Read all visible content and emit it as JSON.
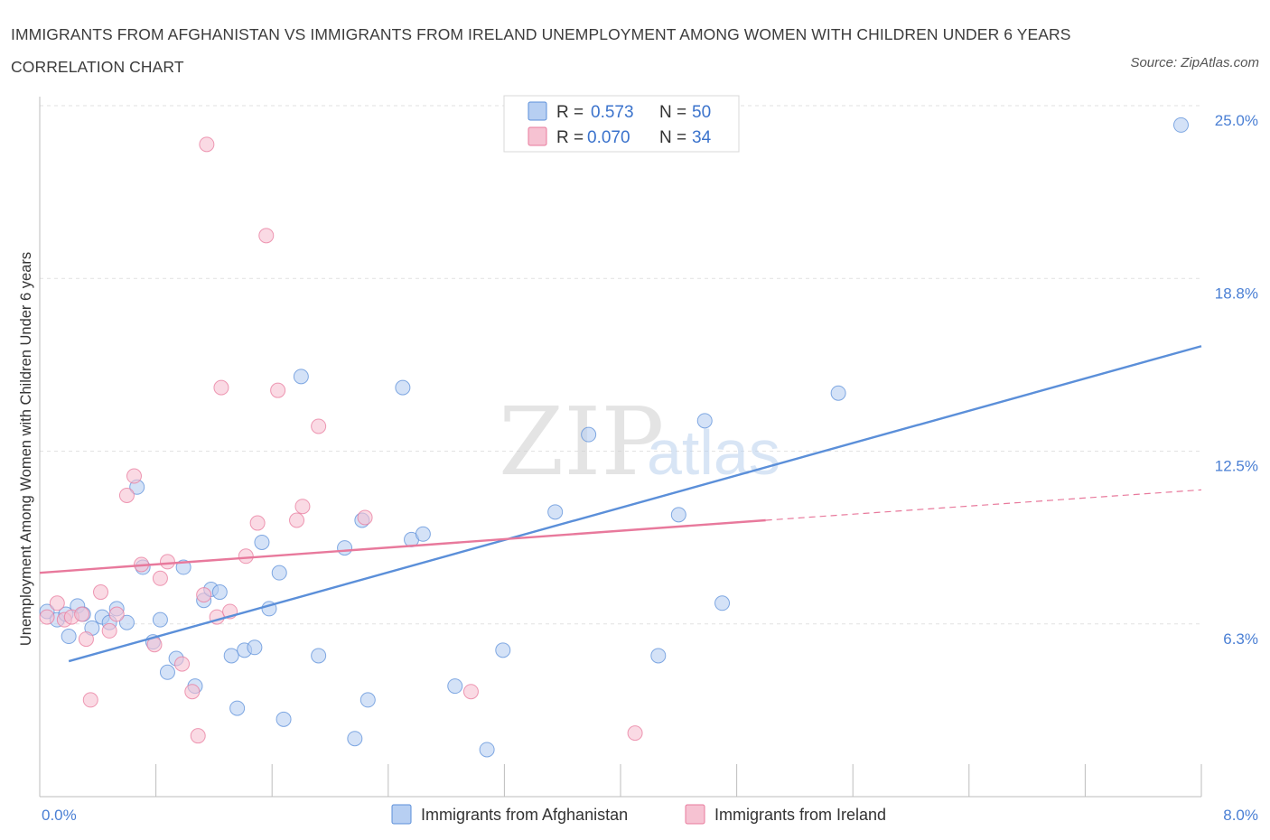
{
  "title": "IMMIGRANTS FROM AFGHANISTAN VS IMMIGRANTS FROM IRELAND UNEMPLOYMENT AMONG WOMEN WITH CHILDREN UNDER 6 YEARS CORRELATION CHART",
  "source": "Source: ZipAtlas.com",
  "watermark": {
    "zip": "ZIP",
    "atlas": "atlas"
  },
  "colors": {
    "afghanistan": "#5b8fd9",
    "ireland": "#e8799c",
    "afghanistan_fill": "#b7cff2",
    "ireland_fill": "#f6c2d2",
    "tick": "#4a7fd4"
  },
  "legend": {
    "rows": [
      {
        "r_label": "R =",
        "r_value": "0.573",
        "n_label": "N =",
        "n_value": "50"
      },
      {
        "r_label": "R =",
        "r_value": "0.070",
        "n_label": "N =",
        "n_value": "34"
      }
    ]
  },
  "bottom_legend": [
    "Immigrants from Afghanistan",
    "Immigrants from Ireland"
  ],
  "chart_data": {
    "type": "scatter",
    "ylabel": "Unemployment Among Women with Children Under 6 years",
    "xlim": [
      0,
      8
    ],
    "ylim": [
      0,
      25
    ],
    "x_tick_labels": [
      {
        "value": 0,
        "label": "0.0%"
      },
      {
        "value": 8,
        "label": "8.0%"
      }
    ],
    "y_tick_labels": [
      {
        "value": 6.25,
        "label": "6.3%"
      },
      {
        "value": 12.5,
        "label": "12.5%"
      },
      {
        "value": 18.75,
        "label": "18.8%"
      },
      {
        "value": 25,
        "label": "25.0%"
      }
    ],
    "grid": true,
    "series": [
      {
        "name": "Immigrants from Afghanistan",
        "points": [
          [
            0.05,
            6.7
          ],
          [
            0.12,
            6.4
          ],
          [
            0.18,
            6.6
          ],
          [
            0.2,
            5.8
          ],
          [
            0.26,
            6.9
          ],
          [
            0.3,
            6.6
          ],
          [
            0.36,
            6.1
          ],
          [
            0.43,
            6.5
          ],
          [
            0.48,
            6.3
          ],
          [
            0.53,
            6.8
          ],
          [
            0.6,
            6.3
          ],
          [
            0.67,
            11.2
          ],
          [
            0.71,
            8.3
          ],
          [
            0.78,
            5.6
          ],
          [
            0.83,
            6.4
          ],
          [
            0.88,
            4.5
          ],
          [
            0.94,
            5.0
          ],
          [
            0.99,
            8.3
          ],
          [
            1.07,
            4.0
          ],
          [
            1.13,
            7.1
          ],
          [
            1.18,
            7.5
          ],
          [
            1.24,
            7.4
          ],
          [
            1.32,
            5.1
          ],
          [
            1.36,
            3.2
          ],
          [
            1.41,
            5.3
          ],
          [
            1.48,
            5.4
          ],
          [
            1.53,
            9.2
          ],
          [
            1.58,
            6.8
          ],
          [
            1.65,
            8.1
          ],
          [
            1.68,
            2.8
          ],
          [
            1.8,
            15.2
          ],
          [
            1.92,
            5.1
          ],
          [
            2.1,
            9.0
          ],
          [
            2.17,
            2.1
          ],
          [
            2.22,
            10.0
          ],
          [
            2.26,
            3.5
          ],
          [
            2.5,
            14.8
          ],
          [
            2.56,
            9.3
          ],
          [
            2.64,
            9.5
          ],
          [
            2.86,
            4.0
          ],
          [
            3.08,
            1.7
          ],
          [
            3.19,
            5.3
          ],
          [
            3.55,
            10.3
          ],
          [
            3.78,
            13.1
          ],
          [
            4.26,
            5.1
          ],
          [
            4.4,
            10.2
          ],
          [
            4.58,
            13.6
          ],
          [
            4.7,
            7.0
          ],
          [
            5.5,
            14.6
          ],
          [
            7.86,
            24.3
          ]
        ]
      },
      {
        "name": "Immigrants from Ireland",
        "points": [
          [
            0.05,
            6.5
          ],
          [
            0.12,
            7.0
          ],
          [
            0.17,
            6.4
          ],
          [
            0.22,
            6.5
          ],
          [
            0.29,
            6.6
          ],
          [
            0.32,
            5.7
          ],
          [
            0.35,
            3.5
          ],
          [
            0.42,
            7.4
          ],
          [
            0.48,
            6.0
          ],
          [
            0.53,
            6.6
          ],
          [
            0.6,
            10.9
          ],
          [
            0.65,
            11.6
          ],
          [
            0.7,
            8.4
          ],
          [
            0.79,
            5.5
          ],
          [
            0.83,
            7.9
          ],
          [
            0.88,
            8.5
          ],
          [
            0.98,
            4.8
          ],
          [
            1.05,
            3.8
          ],
          [
            1.09,
            2.2
          ],
          [
            1.13,
            7.3
          ],
          [
            1.15,
            23.6
          ],
          [
            1.22,
            6.5
          ],
          [
            1.25,
            14.8
          ],
          [
            1.31,
            6.7
          ],
          [
            1.42,
            8.7
          ],
          [
            1.5,
            9.9
          ],
          [
            1.56,
            20.3
          ],
          [
            1.64,
            14.7
          ],
          [
            1.77,
            10.0
          ],
          [
            1.81,
            10.5
          ],
          [
            1.92,
            13.4
          ],
          [
            2.24,
            10.1
          ],
          [
            2.97,
            3.8
          ],
          [
            4.1,
            2.3
          ]
        ]
      }
    ],
    "trendlines": [
      {
        "series": "Immigrants from Afghanistan",
        "x0": 0.2,
        "y0": 4.9,
        "x1": 8.0,
        "y1": 16.3,
        "style": "solid"
      },
      {
        "series": "Immigrants from Ireland",
        "x0": 0.0,
        "y0": 8.1,
        "x1": 5.0,
        "y1": 10.0,
        "style": "solid"
      },
      {
        "series": "Immigrants from Ireland",
        "x0": 5.0,
        "y0": 10.0,
        "x1": 8.0,
        "y1": 11.1,
        "style": "dashed"
      }
    ]
  }
}
